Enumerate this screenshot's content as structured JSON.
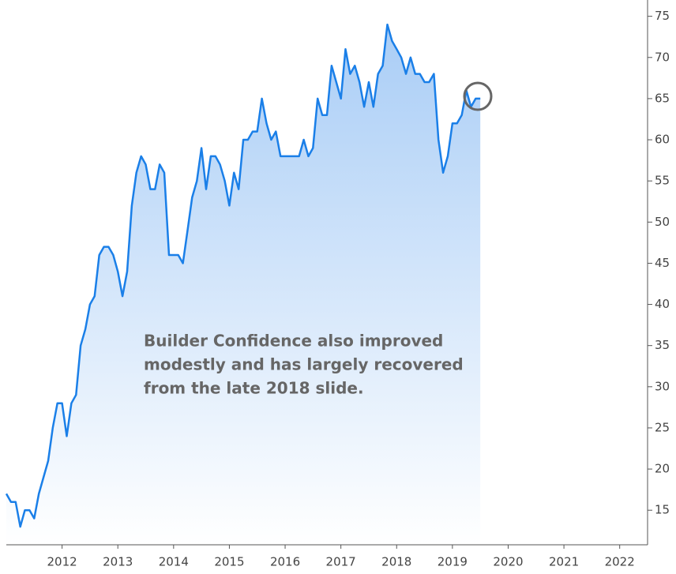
{
  "chart_data": {
    "type": "area_line",
    "annotation": [
      "Builder Confidence also improved",
      "modestly and has largely recovered",
      "from the late 2018 slide."
    ],
    "x": [
      2011,
      2011.083,
      2011.167,
      2011.25,
      2011.333,
      2011.417,
      2011.5,
      2011.583,
      2011.667,
      2011.75,
      2011.833,
      2011.917,
      2012,
      2012.083,
      2012.167,
      2012.25,
      2012.333,
      2012.417,
      2012.5,
      2012.583,
      2012.667,
      2012.75,
      2012.833,
      2012.917,
      2013,
      2013.083,
      2013.167,
      2013.25,
      2013.333,
      2013.417,
      2013.5,
      2013.583,
      2013.667,
      2013.75,
      2013.833,
      2013.917,
      2014,
      2014.083,
      2014.167,
      2014.25,
      2014.333,
      2014.417,
      2014.5,
      2014.583,
      2014.667,
      2014.75,
      2014.833,
      2014.917,
      2015,
      2015.083,
      2015.167,
      2015.25,
      2015.333,
      2015.417,
      2015.5,
      2015.583,
      2015.667,
      2015.75,
      2015.833,
      2015.917,
      2016,
      2016.083,
      2016.167,
      2016.25,
      2016.333,
      2016.417,
      2016.5,
      2016.583,
      2016.667,
      2016.75,
      2016.833,
      2016.917,
      2017,
      2017.083,
      2017.167,
      2017.25,
      2017.333,
      2017.417,
      2017.5,
      2017.583,
      2017.667,
      2017.75,
      2017.833,
      2017.917,
      2018,
      2018.083,
      2018.167,
      2018.25,
      2018.333,
      2018.417,
      2018.5,
      2018.583,
      2018.667,
      2018.75,
      2018.833,
      2018.917,
      2019,
      2019.083,
      2019.167,
      2019.25,
      2019.333,
      2019.417,
      2019.5
    ],
    "series": [
      {
        "color": "#1a7fe8",
        "values": [
          17,
          16,
          16,
          13,
          15,
          15,
          14,
          17,
          19,
          21,
          25,
          28,
          28,
          24,
          28,
          29,
          35,
          37,
          40,
          41,
          46,
          47,
          47,
          46,
          44,
          41,
          44,
          52,
          56,
          58,
          57,
          54,
          54,
          57,
          56,
          46,
          46,
          46,
          45,
          49,
          53,
          55,
          59,
          54,
          58,
          58,
          57,
          55,
          52,
          56,
          54,
          60,
          60,
          61,
          61,
          65,
          62,
          60,
          61,
          58,
          58,
          58,
          58,
          58,
          60,
          58,
          59,
          65,
          63,
          63,
          69,
          67,
          65,
          71,
          68,
          69,
          67,
          64,
          67,
          64,
          68,
          69,
          74,
          72,
          71,
          70,
          68,
          70,
          68,
          68,
          67,
          67,
          68,
          60,
          56,
          58,
          62,
          62,
          63,
          66,
          64,
          65,
          65
        ]
      }
    ],
    "xlim": [
      2011,
      2022.5
    ],
    "xticks": [
      2012,
      2013,
      2014,
      2015,
      2016,
      2017,
      2018,
      2019,
      2020,
      2021,
      2022
    ],
    "ylim": [
      10.8,
      76.5
    ],
    "yticks": [
      15,
      20,
      25,
      30,
      35,
      40,
      45,
      50,
      55,
      60,
      65,
      70,
      75
    ]
  }
}
